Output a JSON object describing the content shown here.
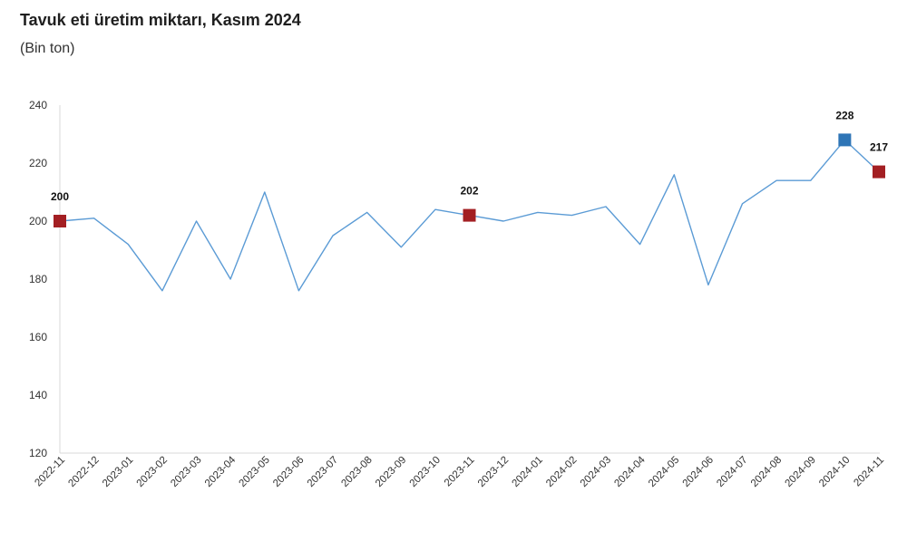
{
  "title": "Tavuk eti üretim miktarı, Kasım 2024",
  "subtitle": "(Bin ton)",
  "colors": {
    "line": "#5b9bd5",
    "highlight_red": "#a31f23",
    "highlight_blue": "#2e75b6",
    "axis": "#d9d9d9"
  },
  "chart_data": {
    "type": "line",
    "title": "Tavuk eti üretim miktarı, Kasım 2024",
    "subtitle": "(Bin ton)",
    "xlabel": "",
    "ylabel": "",
    "ylim": [
      120,
      240
    ],
    "yticks": [
      120,
      140,
      160,
      180,
      200,
      220,
      240
    ],
    "grid": false,
    "categories": [
      "2022-11",
      "2022-12",
      "2023-01",
      "2023-02",
      "2023-03",
      "2023-04",
      "2023-05",
      "2023-06",
      "2023-07",
      "2023-08",
      "2023-09",
      "2023-10",
      "2023-11",
      "2023-12",
      "2024-01",
      "2024-02",
      "2024-03",
      "2024-04",
      "2024-05",
      "2024-06",
      "2024-07",
      "2024-08",
      "2024-09",
      "2024-10",
      "2024-11"
    ],
    "series": [
      {
        "values": [
          200,
          201,
          192,
          176,
          200,
          180,
          210,
          176,
          195,
          203,
          191,
          204,
          202,
          200,
          203,
          202,
          205,
          192,
          216,
          178,
          206,
          214,
          214,
          228,
          217
        ]
      }
    ],
    "highlights": [
      {
        "index": 0,
        "label": "200",
        "color": "red"
      },
      {
        "index": 12,
        "label": "202",
        "color": "red"
      },
      {
        "index": 23,
        "label": "228",
        "color": "blue"
      },
      {
        "index": 24,
        "label": "217",
        "color": "red"
      }
    ]
  }
}
